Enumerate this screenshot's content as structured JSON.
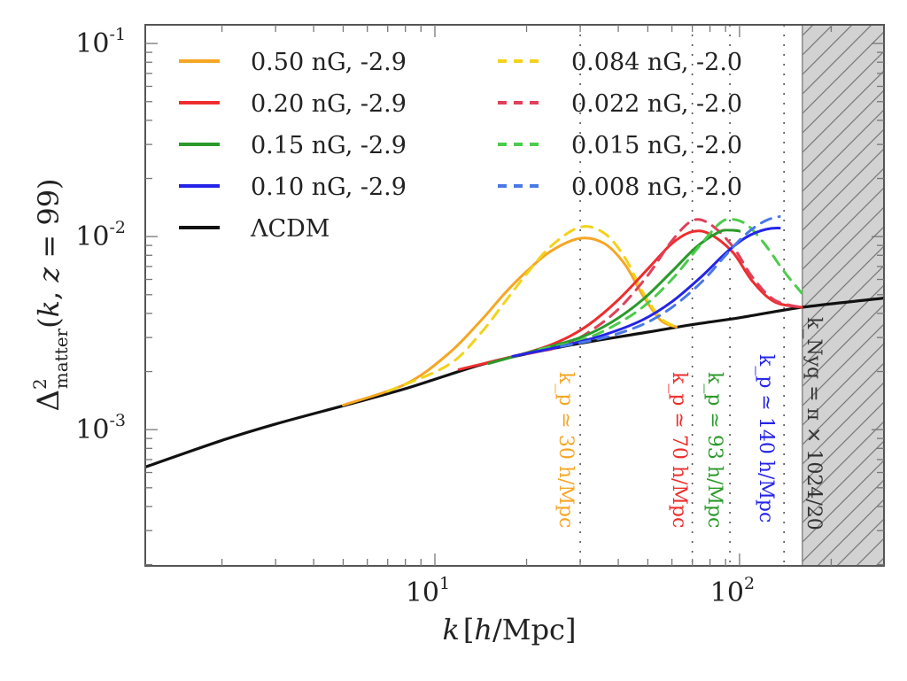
{
  "chart_data": {
    "type": "line",
    "title": "",
    "xlabel": "k [h/Mpc]",
    "ylabel": "Δ²_matter(k, z = 99)",
    "xscale": "log",
    "yscale": "log",
    "xlim": [
      1.12,
      298
    ],
    "ylim": [
      0.000197,
      0.125
    ],
    "x_ticks": [
      {
        "value": 10,
        "label": "10",
        "exp": "1"
      },
      {
        "value": 100,
        "label": "10",
        "exp": "2"
      }
    ],
    "y_ticks": [
      {
        "value": 0.1,
        "label": "10",
        "exp": "-1"
      },
      {
        "value": 0.01,
        "label": "10",
        "exp": "-2"
      },
      {
        "value": 0.001,
        "label": "10",
        "exp": "-3"
      }
    ],
    "grid": false,
    "legend_placement": "top-left, two columns",
    "legend": [
      {
        "label": "0.50 nG, -2.9",
        "color": "#f5a623",
        "style": "solid"
      },
      {
        "label": "0.20 nG, -2.9",
        "color": "#ee2d2d",
        "style": "solid"
      },
      {
        "label": "0.15 nG, -2.9",
        "color": "#2a9a2a",
        "style": "solid"
      },
      {
        "label": "0.10 nG, -2.9",
        "color": "#2424e8",
        "style": "solid"
      },
      {
        "label": "ΛCDM",
        "color": "#111111",
        "style": "solid"
      },
      {
        "label": "0.084 nG, -2.0",
        "color": "#f2d21b",
        "style": "dashed"
      },
      {
        "label": "0.022 nG, -2.0",
        "color": "#e0405a",
        "style": "dashed"
      },
      {
        "label": "0.015 nG, -2.0",
        "color": "#4ccc4c",
        "style": "dashed"
      },
      {
        "label": "0.008 nG, -2.0",
        "color": "#4a78e8",
        "style": "dashed"
      }
    ],
    "series": [
      {
        "name": "ΛCDM",
        "color": "#111111",
        "style": "solid",
        "x": [
          1.12,
          2,
          3,
          5,
          8,
          14,
          20,
          30,
          50,
          70,
          100,
          160,
          298
        ],
        "y": [
          0.00064,
          0.00088,
          0.00107,
          0.00133,
          0.00163,
          0.00216,
          0.00247,
          0.0028,
          0.0032,
          0.0035,
          0.0038,
          0.0043,
          0.0048
        ]
      },
      {
        "name": "0.50 nG, -2.9",
        "color": "#f5a623",
        "style": "solid",
        "x": [
          5,
          8,
          11,
          14,
          17,
          20,
          24,
          30,
          36,
          42,
          48,
          55,
          62
        ],
        "y": [
          0.00134,
          0.00172,
          0.00245,
          0.0036,
          0.0051,
          0.0066,
          0.0084,
          0.0098,
          0.0092,
          0.0072,
          0.005,
          0.0037,
          0.0034
        ]
      },
      {
        "name": "0.084 nG, -2.0",
        "color": "#f2d21b",
        "style": "dashed",
        "x": [
          7,
          11,
          14,
          17,
          20,
          24,
          30,
          36,
          42,
          48,
          55,
          62
        ],
        "y": [
          0.00158,
          0.00215,
          0.0031,
          0.0046,
          0.0064,
          0.0089,
          0.0112,
          0.0104,
          0.0078,
          0.0052,
          0.0038,
          0.0034
        ]
      },
      {
        "name": "0.20 nG, -2.9",
        "color": "#ee2d2d",
        "style": "solid",
        "x": [
          12,
          20,
          26,
          32,
          40,
          50,
          60,
          70,
          80,
          95,
          110,
          130,
          160
        ],
        "y": [
          0.00205,
          0.0025,
          0.0029,
          0.0035,
          0.0047,
          0.0068,
          0.0092,
          0.0106,
          0.0103,
          0.0083,
          0.0059,
          0.0046,
          0.0043
        ]
      },
      {
        "name": "0.022 nG, -2.0",
        "color": "#e0405a",
        "style": "dashed",
        "x": [
          20,
          26,
          32,
          40,
          50,
          60,
          70,
          80,
          95,
          110,
          130,
          160
        ],
        "y": [
          0.00247,
          0.0027,
          0.0032,
          0.0042,
          0.0063,
          0.0095,
          0.0121,
          0.0116,
          0.0089,
          0.0062,
          0.0047,
          0.0043
        ]
      },
      {
        "name": "0.15 nG, -2.9",
        "color": "#2a9a2a",
        "style": "solid",
        "x": [
          15,
          22,
          30,
          38,
          48,
          60,
          72,
          85,
          93,
          105,
          120,
          140,
          160,
          185,
          220
        ],
        "y": [
          0.0022,
          0.0026,
          0.003,
          0.0036,
          0.0047,
          0.0066,
          0.0088,
          0.0105,
          0.0108,
          0.0104,
          0.0088,
          0.0064,
          0.005,
          0.0045,
          0.0046
        ]
      },
      {
        "name": "0.015 nG, -2.0",
        "color": "#4ccc4c",
        "style": "dashed",
        "x": [
          22,
          30,
          38,
          48,
          60,
          72,
          85,
          93,
          105,
          120,
          140,
          160
        ],
        "y": [
          0.0026,
          0.0029,
          0.0034,
          0.0043,
          0.006,
          0.0085,
          0.0115,
          0.0123,
          0.0116,
          0.0093,
          0.0066,
          0.0051
        ]
      },
      {
        "name": "0.10 nG, -2.9",
        "color": "#2424e8",
        "style": "solid",
        "x": [
          18,
          26,
          36,
          48,
          60,
          75,
          90,
          105,
          122,
          140,
          160,
          190,
          230,
          298
        ],
        "y": [
          0.0024,
          0.0027,
          0.0031,
          0.0037,
          0.0046,
          0.0062,
          0.0082,
          0.0099,
          0.0109,
          0.011,
          0.0102,
          0.0079,
          0.0057,
          0.0048
        ]
      },
      {
        "name": "0.008 nG, -2.0",
        "color": "#4a78e8",
        "style": "dashed",
        "x": [
          26,
          36,
          48,
          60,
          75,
          90,
          105,
          122,
          140,
          160,
          190,
          230,
          298
        ],
        "y": [
          0.0027,
          0.003,
          0.0035,
          0.0043,
          0.0058,
          0.008,
          0.0103,
          0.0121,
          0.0127,
          0.0118,
          0.0088,
          0.006,
          0.0048
        ]
      }
    ],
    "vlines": [
      {
        "x": 30,
        "label": "k_p ≃ 30 h/Mpc",
        "color": "#f5a623"
      },
      {
        "x": 70,
        "label": "k_p ≃ 70 h/Mpc",
        "color": "#ee2d2d"
      },
      {
        "x": 93,
        "label": "k_p ≃ 93 h/Mpc",
        "color": "#2a9a2a"
      },
      {
        "x": 140,
        "label": "k_p ≃ 140 h/Mpc",
        "color": "#2424e8"
      }
    ],
    "shaded_region": {
      "x_from": 160.8,
      "x_to": 298,
      "label": "k_Nyq = π × 1024/20",
      "fill": "#d0d0d0",
      "hatch": "diagonal"
    }
  }
}
